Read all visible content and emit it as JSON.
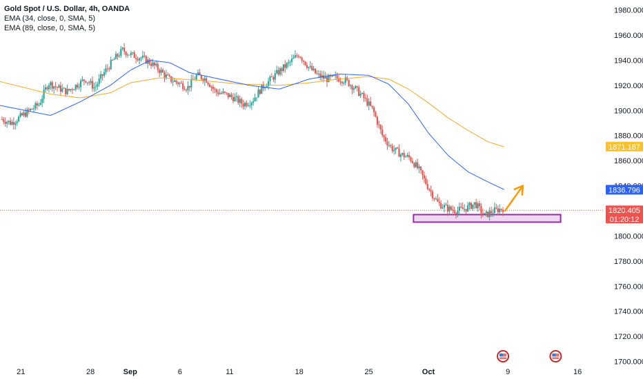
{
  "legend": {
    "title": "Gold Spot / U.S. Dollar, 4h, OANDA",
    "ema_fast": "EMA (34, close, 0, SMA, 5)",
    "ema_slow": "EMA (89, close, 0, SMA, 5)"
  },
  "colors": {
    "up": "#26a69a",
    "down": "#ef5350",
    "ema_fast": "#2962ff",
    "ema_slow": "#f9a825",
    "price_line": "#ef5350",
    "zone_fill": "#e1bee7",
    "zone_stroke": "#9c27b0",
    "arrow": "#ff9800",
    "current_tag": "#ef5350",
    "ema_fast_tag": "#2962ff",
    "ema_slow_tag": "#fbc02d"
  },
  "chart_data": {
    "type": "candlestick",
    "symbol": "Gold Spot / U.S. Dollar",
    "interval": "4h",
    "ylim": [
      1697,
      1988
    ],
    "y_ticks": [
      "1700.000",
      "1720.000",
      "1740.000",
      "1760.000",
      "1780.000",
      "1800.000",
      "1820.000",
      "1840.000",
      "1860.000",
      "1880.000",
      "1900.000",
      "1920.000",
      "1940.000",
      "1960.000",
      "1980.000"
    ],
    "x_ticks": [
      {
        "label": "21",
        "day": 0,
        "bold": false
      },
      {
        "label": "28",
        "day": 7,
        "bold": false
      },
      {
        "label": "Sep",
        "day": 11,
        "bold": true
      },
      {
        "label": "6",
        "day": 16,
        "bold": false
      },
      {
        "label": "11",
        "day": 21,
        "bold": false
      },
      {
        "label": "18",
        "day": 28,
        "bold": false
      },
      {
        "label": "25",
        "day": 35,
        "bold": false
      },
      {
        "label": "Oct",
        "day": 41,
        "bold": true
      },
      {
        "label": "9",
        "day": 49,
        "bold": false
      },
      {
        "label": "16",
        "day": 56,
        "bold": false
      }
    ],
    "x_range_days": [
      -2.1,
      58.7
    ],
    "key_prices": [
      1893,
      1890,
      1895,
      1900,
      1905,
      1922,
      1918,
      1915,
      1920,
      1925,
      1918,
      1930,
      1940,
      1948,
      1944,
      1942,
      1938,
      1932,
      1925,
      1922,
      1918,
      1928,
      1925,
      1915,
      1913,
      1910,
      1905,
      1908,
      1918,
      1925,
      1932,
      1938,
      1945,
      1935,
      1928,
      1925,
      1926,
      1924,
      1918,
      1910,
      1900,
      1880,
      1870,
      1865,
      1862,
      1852,
      1838,
      1826,
      1822,
      1820,
      1822,
      1826,
      1816,
      1820,
      1822
    ],
    "ema_fast_anchors": [
      [
        -2.1,
        1904
      ],
      [
        3,
        1896
      ],
      [
        6,
        1907
      ],
      [
        9,
        1920
      ],
      [
        11,
        1932
      ],
      [
        13,
        1940
      ],
      [
        15,
        1938
      ],
      [
        17,
        1930
      ],
      [
        20,
        1925
      ],
      [
        23,
        1920
      ],
      [
        26,
        1917
      ],
      [
        29,
        1925
      ],
      [
        32,
        1929
      ],
      [
        35,
        1928
      ],
      [
        37,
        1921
      ],
      [
        39,
        1905
      ],
      [
        41,
        1882
      ],
      [
        43,
        1864
      ],
      [
        45,
        1851
      ],
      [
        47,
        1843
      ],
      [
        48.6,
        1837
      ]
    ],
    "ema_slow_anchors": [
      [
        -2.1,
        1923
      ],
      [
        3,
        1913
      ],
      [
        6,
        1910
      ],
      [
        9,
        1914
      ],
      [
        11,
        1922
      ],
      [
        14,
        1926
      ],
      [
        18,
        1924
      ],
      [
        22,
        1921
      ],
      [
        26,
        1920
      ],
      [
        29,
        1922
      ],
      [
        32,
        1925
      ],
      [
        35,
        1927
      ],
      [
        37,
        1925
      ],
      [
        39,
        1917
      ],
      [
        41,
        1906
      ],
      [
        43,
        1894
      ],
      [
        45,
        1884
      ],
      [
        47,
        1875
      ],
      [
        48.6,
        1871
      ]
    ],
    "current_price": "1820.405",
    "countdown": "01:20:12",
    "ema_fast_value": "1836.796",
    "ema_slow_value": "1871.187",
    "support_zone": {
      "from_day": 39.5,
      "to_day": 54.3,
      "low": 1811,
      "high": 1817
    },
    "projection_arrow": {
      "from": [
        48.7,
        1820
      ],
      "to": [
        50.5,
        1840
      ]
    },
    "event_markers": [
      {
        "day": 48.5
      },
      {
        "day": 53.8
      }
    ]
  }
}
